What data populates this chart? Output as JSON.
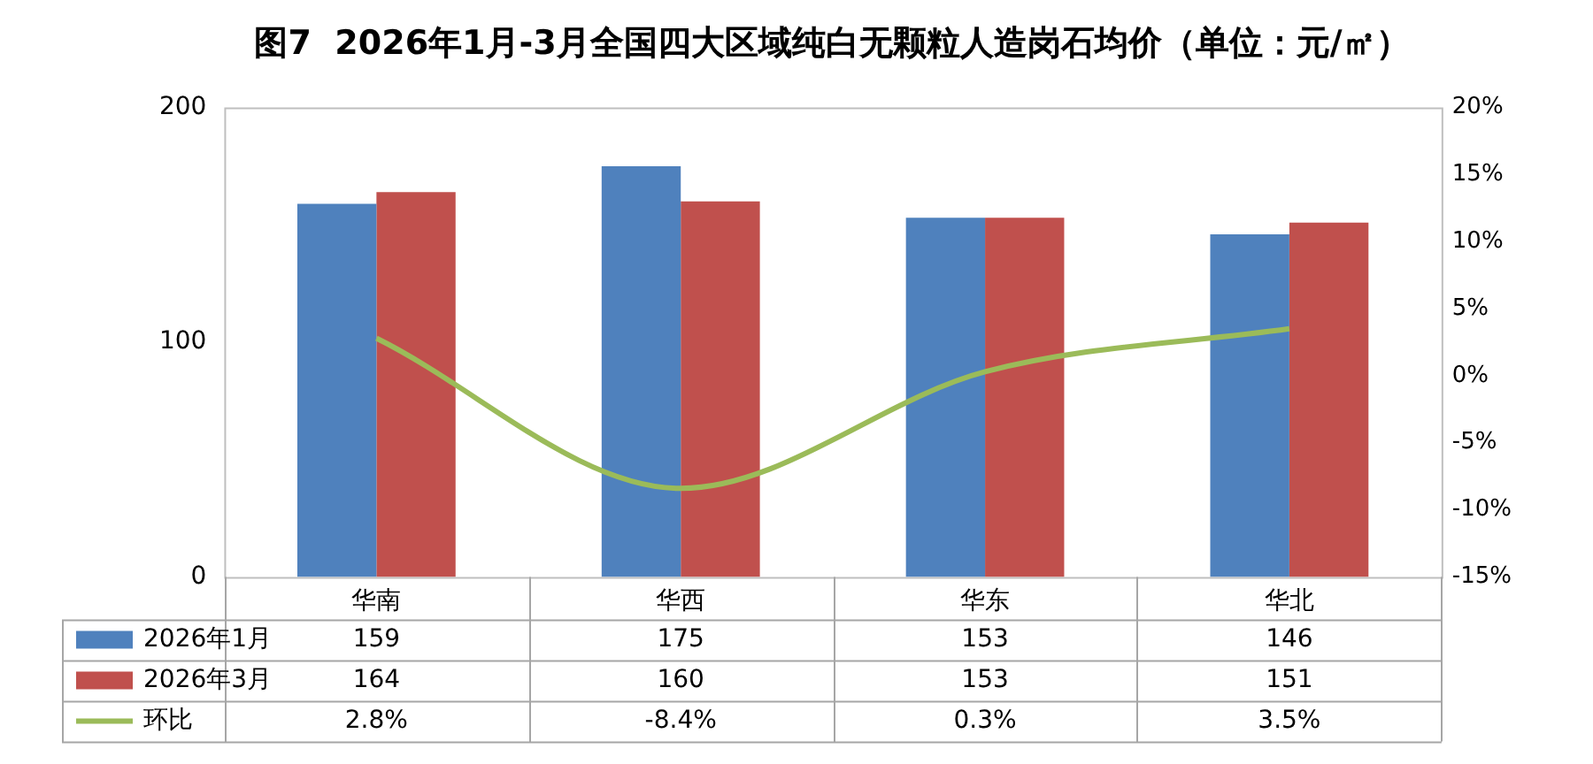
{
  "chart_data": {
    "type": "bar",
    "title": "图7  2026年1月-3月全国四大区域纯白无颗粒人造岗石均价（单位：元/㎡）",
    "categories": [
      "华南",
      "华西",
      "华东",
      "华北"
    ],
    "series": [
      {
        "name": "2026年1月",
        "color": "#4f81bd",
        "values": [
          159,
          175,
          153,
          146
        ],
        "value_labels": [
          "159",
          "175",
          "153",
          "146"
        ]
      },
      {
        "name": "2026年3月",
        "color": "#c0504d",
        "values": [
          164,
          160,
          153,
          151
        ],
        "value_labels": [
          "164",
          "160",
          "153",
          "151"
        ]
      },
      {
        "name": "环比",
        "type": "line",
        "axis": "y2",
        "color": "#9bbb59",
        "values": [
          2.8,
          -8.4,
          0.3,
          3.5
        ],
        "value_labels": [
          "2.8%",
          "-8.4%",
          "0.3%",
          "3.5%"
        ]
      }
    ],
    "ylim": [
      0,
      200
    ],
    "yticks": [
      0,
      100,
      200
    ],
    "y2lim": [
      -15,
      20
    ],
    "y2ticks": [
      {
        "value": -15,
        "label": "-15%"
      },
      {
        "value": -10,
        "label": "-10%"
      },
      {
        "value": -5,
        "label": "-5%"
      },
      {
        "value": 0,
        "label": "0%"
      },
      {
        "value": 5,
        "label": "5%"
      },
      {
        "value": 10,
        "label": "10%"
      },
      {
        "value": 15,
        "label": "15%"
      },
      {
        "value": 20,
        "label": "20%"
      }
    ],
    "grid": false,
    "legend": "bottom"
  }
}
